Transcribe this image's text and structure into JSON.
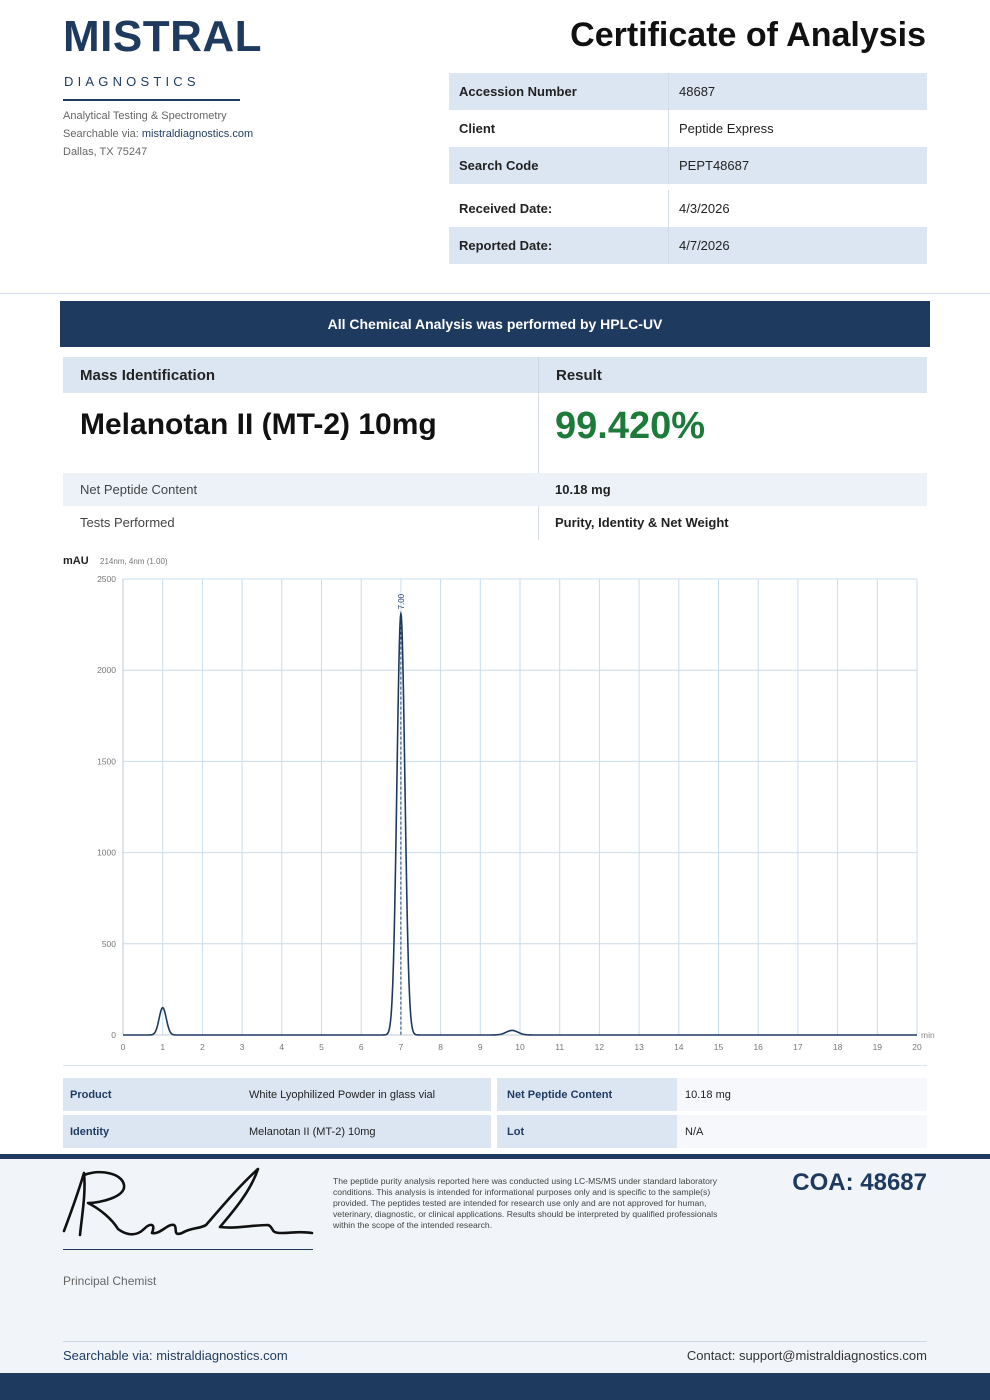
{
  "brand": {
    "name": "MISTRAL",
    "subtitle": "DIAGNOSTICS",
    "tagline": "Analytical Testing & Spectrometry",
    "searchable_prefix": "Searchable via: ",
    "searchable_link": "mistraldiagnostics.com",
    "address": "Dallas, TX 75247"
  },
  "document_title": "Certificate of Analysis",
  "info": [
    {
      "label": "Accession Number",
      "value": "48687"
    },
    {
      "label": "Client",
      "value": "Peptide Express"
    },
    {
      "label": "Search Code",
      "value": "PEPT48687"
    },
    {
      "label": "Received Date:",
      "value": "4/3/2026"
    },
    {
      "label": "Reported Date:",
      "value": "4/7/2026"
    }
  ],
  "banner": "All Chemical Analysis was performed by HPLC-UV",
  "result": {
    "col1_header": "Mass Identification",
    "col2_header": "Result",
    "product": "Melanotan II (MT-2) 10mg",
    "purity": "99.420%",
    "rows": [
      {
        "label": "Net Peptide Content",
        "value": "10.18 mg"
      },
      {
        "label": "Tests Performed",
        "value": "Purity, Identity & Net Weight"
      }
    ]
  },
  "chart_data": {
    "type": "line",
    "ylabel": "mAU",
    "detector_note": "214nm, 4nm (1.00)",
    "xunit": "min",
    "xlim": [
      0,
      20
    ],
    "ylim": [
      0,
      2500
    ],
    "xticks": [
      0,
      1,
      2,
      3,
      4,
      5,
      6,
      7,
      8,
      9,
      10,
      11,
      12,
      13,
      14,
      15,
      16,
      17,
      18,
      19,
      20
    ],
    "yticks": [
      0,
      500,
      1000,
      1500,
      2000,
      2500
    ],
    "grid": true,
    "peak_label": "7.00",
    "peaks": [
      {
        "rt": 1.0,
        "height": 150,
        "sigma": 0.09
      },
      {
        "rt": 7.0,
        "height": 2310,
        "sigma": 0.1
      },
      {
        "rt": 9.8,
        "height": 25,
        "sigma": 0.15
      }
    ]
  },
  "details": {
    "row1": {
      "label": "Product",
      "value": "White Lyophilized Powder in glass vial",
      "label2": "Net Peptide Content",
      "value2": "10.18 mg"
    },
    "row2": {
      "label": "Identity",
      "value": "Melanotan II (MT-2) 10mg",
      "label2": "Lot",
      "value2": "N/A"
    }
  },
  "footer": {
    "signer_role": "Principal Chemist",
    "disclaimer": "The peptide purity analysis reported here was conducted using LC-MS/MS under standard laboratory conditions. This analysis is intended for informational purposes only and is specific to the sample(s) provided. The peptides tested are intended for research use only and are not approved for human, veterinary, diagnostic, or clinical applications. Results should be interpreted by qualified professionals within the scope of the intended research.",
    "coa_number": "COA: 48687",
    "searchable": "Searchable via: mistraldiagnostics.com",
    "contact": "Contact: support@mistraldiagnostics.com"
  },
  "colors": {
    "brand_navy": "#1e3a5f",
    "purity_green": "#1c7a3a",
    "row_shade": "#dce6f3"
  }
}
